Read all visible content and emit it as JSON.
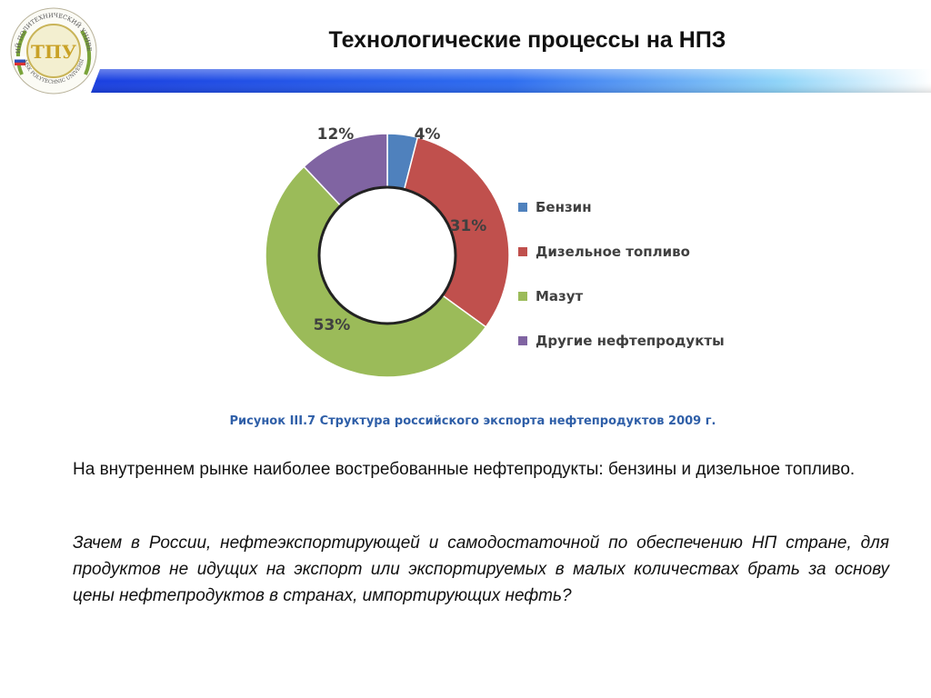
{
  "header": {
    "title": "Технологические процессы на НПЗ",
    "logo": {
      "text_top": "ТОМСКИЙ ПОЛИТЕХНИЧЕСКИЙ УНИВЕРСИТЕТ",
      "text_bottom": "TOMSK POLYTECHNIC UNIVERSITY",
      "monogram": "ТПУ"
    },
    "bar_color": "#1a3fe0"
  },
  "chart_data": {
    "type": "pie",
    "donut": true,
    "categories": [
      "Бензин",
      "Дизельное топливо",
      "Мазут",
      "Другие нефтепродукты"
    ],
    "values": [
      4,
      31,
      53,
      12
    ],
    "labels": [
      "4%",
      "31%",
      "53%",
      "12%"
    ],
    "colors": [
      "#4f81bd",
      "#c0504d",
      "#9bbb59",
      "#8064a2"
    ],
    "legend_position": "right"
  },
  "caption": "Рисунок III.7 Структура российского экспорта нефтепродуктов 2009 г.",
  "body": {
    "paragraph_1": "На внутреннем рынке наиболее востребованные нефтепродукты: бензины и дизельное топливо.",
    "paragraph_2": "Зачем в России, нефтеэкспортирующей и самодостаточной по обеспечению НП стране, для продуктов не идущих на экспорт или экспортируемых в малых количествах брать за основу цены нефтепродуктов в странах, импортирующих нефть?"
  }
}
